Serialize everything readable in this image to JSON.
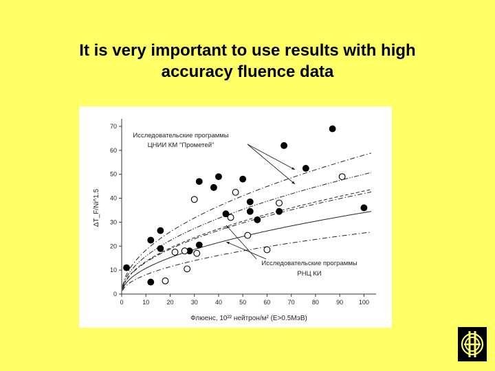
{
  "slide": {
    "title_line1": "It is very important to use results with high",
    "title_line2": "accuracy fluence data",
    "background_color": "#ffff66"
  },
  "chart_data": {
    "type": "scatter",
    "xlabel": "Флюенс, 10²² нейтрон/м² (E>0.5МэВ)",
    "ylabel": "ΔT_F/Ni^1.5",
    "xlim": [
      0,
      105
    ],
    "ylim": [
      0,
      72
    ],
    "x_ticks": [
      0,
      10,
      20,
      30,
      40,
      50,
      60,
      70,
      80,
      90,
      100
    ],
    "y_ticks": [
      0,
      10,
      20,
      30,
      40,
      50,
      60,
      70
    ],
    "grid": false,
    "annotations": [
      {
        "lines": [
          "Исследовательские программы",
          "ЦНИИ КМ \"Прометей\""
        ],
        "points_to": "filled"
      },
      {
        "lines": [
          "Исследовательские программы",
          "РНЦ КИ"
        ],
        "points_to": "open"
      }
    ],
    "series": [
      {
        "marker": "filled-circle",
        "points": [
          [
            2,
            11
          ],
          [
            12,
            5
          ],
          [
            12,
            22.5
          ],
          [
            16,
            26.5
          ],
          [
            16,
            19
          ],
          [
            28,
            18
          ],
          [
            32,
            47
          ],
          [
            32,
            20.5
          ],
          [
            38,
            44.5
          ],
          [
            40,
            49
          ],
          [
            43,
            33.5
          ],
          [
            50,
            48
          ],
          [
            53,
            34.5
          ],
          [
            53,
            38.5
          ],
          [
            56,
            31
          ],
          [
            65,
            34.5
          ],
          [
            67,
            62
          ],
          [
            76,
            52.5
          ],
          [
            87,
            69
          ],
          [
            100,
            36
          ]
        ]
      },
      {
        "marker": "open-circle",
        "points": [
          [
            18,
            5.5
          ],
          [
            22,
            17.5
          ],
          [
            26,
            18
          ],
          [
            27,
            10.5
          ],
          [
            30,
            39.5
          ],
          [
            31,
            17
          ],
          [
            45,
            32
          ],
          [
            47,
            42.5
          ],
          [
            52,
            24.5
          ],
          [
            60,
            18.5
          ],
          [
            65,
            38
          ],
          [
            91,
            49
          ]
        ]
      }
    ],
    "curves": [
      {
        "style": "dash-dot",
        "coeff": 5.8
      },
      {
        "style": "dash-dot-dot",
        "coeff": 5.0
      },
      {
        "style": "dashed",
        "coeff": 4.3
      },
      {
        "style": "dash-dot",
        "coeff": 4.2
      },
      {
        "style": "solid",
        "coeff": 3.4
      },
      {
        "style": "dash-dot",
        "coeff": 2.55
      }
    ]
  }
}
